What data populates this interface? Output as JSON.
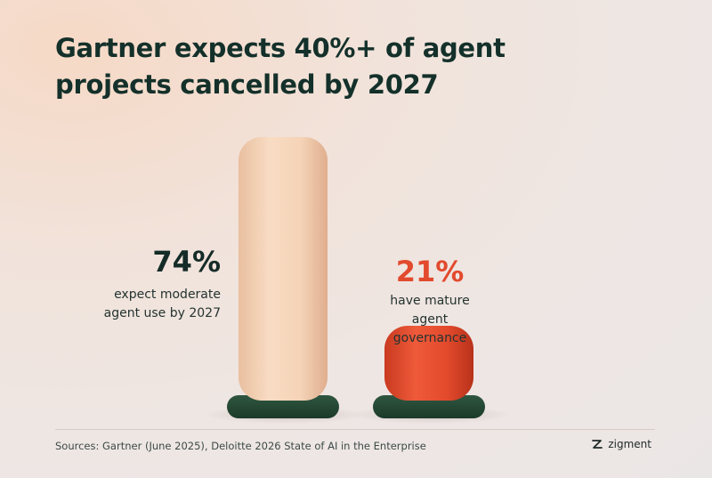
{
  "title_lines": [
    "Gartner expects 40%+ of agent",
    "projects cancelled by 2027"
  ],
  "chart_data": {
    "type": "bar",
    "categories": [
      "expect moderate agent use by 2027",
      "have mature agent governance"
    ],
    "values": [
      74,
      21
    ],
    "value_labels": [
      "74%",
      "21%"
    ],
    "descriptions": [
      [
        "expect moderate",
        "agent use by 2027"
      ],
      [
        "have mature",
        "agent governance"
      ]
    ],
    "ylim": [
      0,
      100
    ],
    "grid": false,
    "legend": "none",
    "colors": [
      "#f4d2b6",
      "#e34a2c"
    ],
    "base_color": "#244532",
    "label_colors": [
      "#152b27",
      "#e24a2e"
    ]
  },
  "source": "Sources: Gartner (June 2025), Deloitte 2026 State of AI in the Enterprise",
  "brand": {
    "name": "zigment",
    "icon": "zigment-logo-icon"
  }
}
